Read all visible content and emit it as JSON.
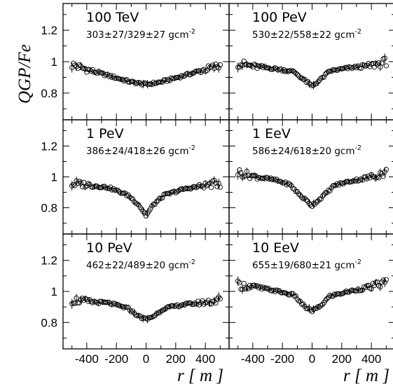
{
  "chart_data": {
    "type": "scatter",
    "y_axis_label": "QGP/Fe",
    "x_axis_label": "r [ m ]",
    "xlim": [
      -560,
      560
    ],
    "ylim": [
      0.63,
      1.37
    ],
    "x_ticks": [
      -400,
      -200,
      0,
      200,
      400
    ],
    "x_tick_labels": [
      "-400",
      "-200",
      "0",
      "200",
      "400"
    ],
    "y_ticks": [
      0.8,
      1.0,
      1.2
    ],
    "y_tick_labels": [
      "0.8",
      "1",
      "1.2"
    ],
    "panels": [
      {
        "energy": "100 TeV",
        "depth": "303±27/329±27 gcm",
        "depth_unit_exp": "-2",
        "r_min": -500,
        "r_max": 500,
        "profile": {
          "x": [
            -500,
            -400,
            -250,
            -100,
            0,
            100,
            250,
            400,
            500
          ],
          "y": [
            0.98,
            0.95,
            0.91,
            0.87,
            0.855,
            0.87,
            0.91,
            0.95,
            0.975
          ]
        }
      },
      {
        "energy": "100 PeV",
        "depth": "530±22/558±22 gcm",
        "depth_unit_exp": "-2",
        "r_min": -500,
        "r_max": 500,
        "profile": {
          "x": [
            -500,
            -400,
            -250,
            -120,
            -50,
            0,
            50,
            120,
            250,
            400,
            500
          ],
          "y": [
            0.99,
            0.97,
            0.955,
            0.935,
            0.88,
            0.845,
            0.88,
            0.94,
            0.96,
            0.975,
            1.0
          ]
        }
      },
      {
        "energy": "1 PeV",
        "depth": "386±24/418±26 gcm",
        "depth_unit_exp": "-2",
        "r_min": -500,
        "r_max": 500,
        "profile": {
          "x": [
            -500,
            -400,
            -250,
            -120,
            -50,
            0,
            50,
            120,
            250,
            400,
            500
          ],
          "y": [
            0.955,
            0.95,
            0.93,
            0.88,
            0.82,
            0.75,
            0.82,
            0.88,
            0.92,
            0.945,
            0.96
          ]
        }
      },
      {
        "energy": "1 EeV",
        "depth": "586±24/618±20 gcm",
        "depth_unit_exp": "-2",
        "r_min": -500,
        "r_max": 500,
        "profile": {
          "x": [
            -500,
            -400,
            -250,
            -150,
            -80,
            0,
            80,
            150,
            250,
            400,
            500
          ],
          "y": [
            1.03,
            1.005,
            0.98,
            0.95,
            0.88,
            0.815,
            0.88,
            0.945,
            0.97,
            1.0,
            1.03
          ]
        }
      },
      {
        "energy": "10 PeV",
        "depth": "462±22/489±20 gcm",
        "depth_unit_exp": "-2",
        "r_min": -500,
        "r_max": 500,
        "profile": {
          "x": [
            -500,
            -400,
            -250,
            -120,
            -50,
            0,
            50,
            120,
            250,
            400,
            500
          ],
          "y": [
            0.945,
            0.935,
            0.925,
            0.89,
            0.84,
            0.82,
            0.84,
            0.89,
            0.915,
            0.93,
            0.945
          ]
        }
      },
      {
        "energy": "10 EeV",
        "depth": "655±19/680±21 gcm",
        "depth_unit_exp": "-2",
        "r_min": -500,
        "r_max": 500,
        "profile": {
          "x": [
            -500,
            -400,
            -250,
            -120,
            -50,
            0,
            50,
            120,
            250,
            400,
            500
          ],
          "y": [
            1.04,
            1.03,
            1.005,
            0.975,
            0.9,
            0.875,
            0.9,
            0.97,
            1.0,
            1.03,
            1.06
          ]
        }
      }
    ]
  }
}
